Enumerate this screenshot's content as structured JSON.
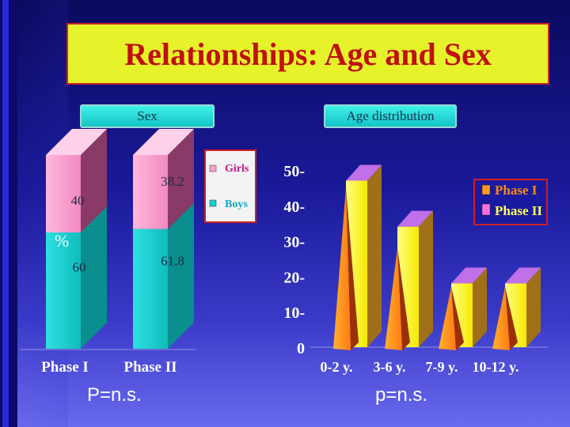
{
  "title": "Relationships: Age and Sex",
  "tabs": {
    "sex": "Sex",
    "age": "Age distribution"
  },
  "footer": {
    "left": "P=n.s.",
    "right": "p=n.s."
  },
  "colors": {
    "girls": "#f7a3cf",
    "boys": "#18cfcf",
    "phase1": "#ff9a1a",
    "phase2": "#ffff44"
  },
  "chart_data": [
    {
      "type": "bar",
      "subtype": "stacked-3d",
      "title": "Sex",
      "ylabel": "%",
      "categories": [
        "Phase I",
        "Phase II"
      ],
      "series": [
        {
          "name": "Boys",
          "values": [
            60,
            61.8
          ]
        },
        {
          "name": "Girls",
          "values": [
            40,
            38.2
          ]
        }
      ],
      "legend": [
        "Girls",
        "Boys"
      ],
      "legend_position": "right"
    },
    {
      "type": "bar",
      "subtype": "3d-cone",
      "title": "Age distribution",
      "categories": [
        "0-2 y.",
        "3-6 y.",
        "7-9 y.",
        "10-12 y."
      ],
      "y_ticks": [
        "0",
        "10",
        "20",
        "30",
        "40",
        "50"
      ],
      "ylim": [
        0,
        50
      ],
      "series": [
        {
          "name": "Phase I",
          "values": [
            45,
            28,
            17,
            17
          ]
        },
        {
          "name": "Phase II",
          "values": [
            47,
            34,
            18,
            18
          ]
        }
      ],
      "legend": [
        "Phase I",
        "Phase II"
      ],
      "legend_position": "top-right"
    }
  ]
}
